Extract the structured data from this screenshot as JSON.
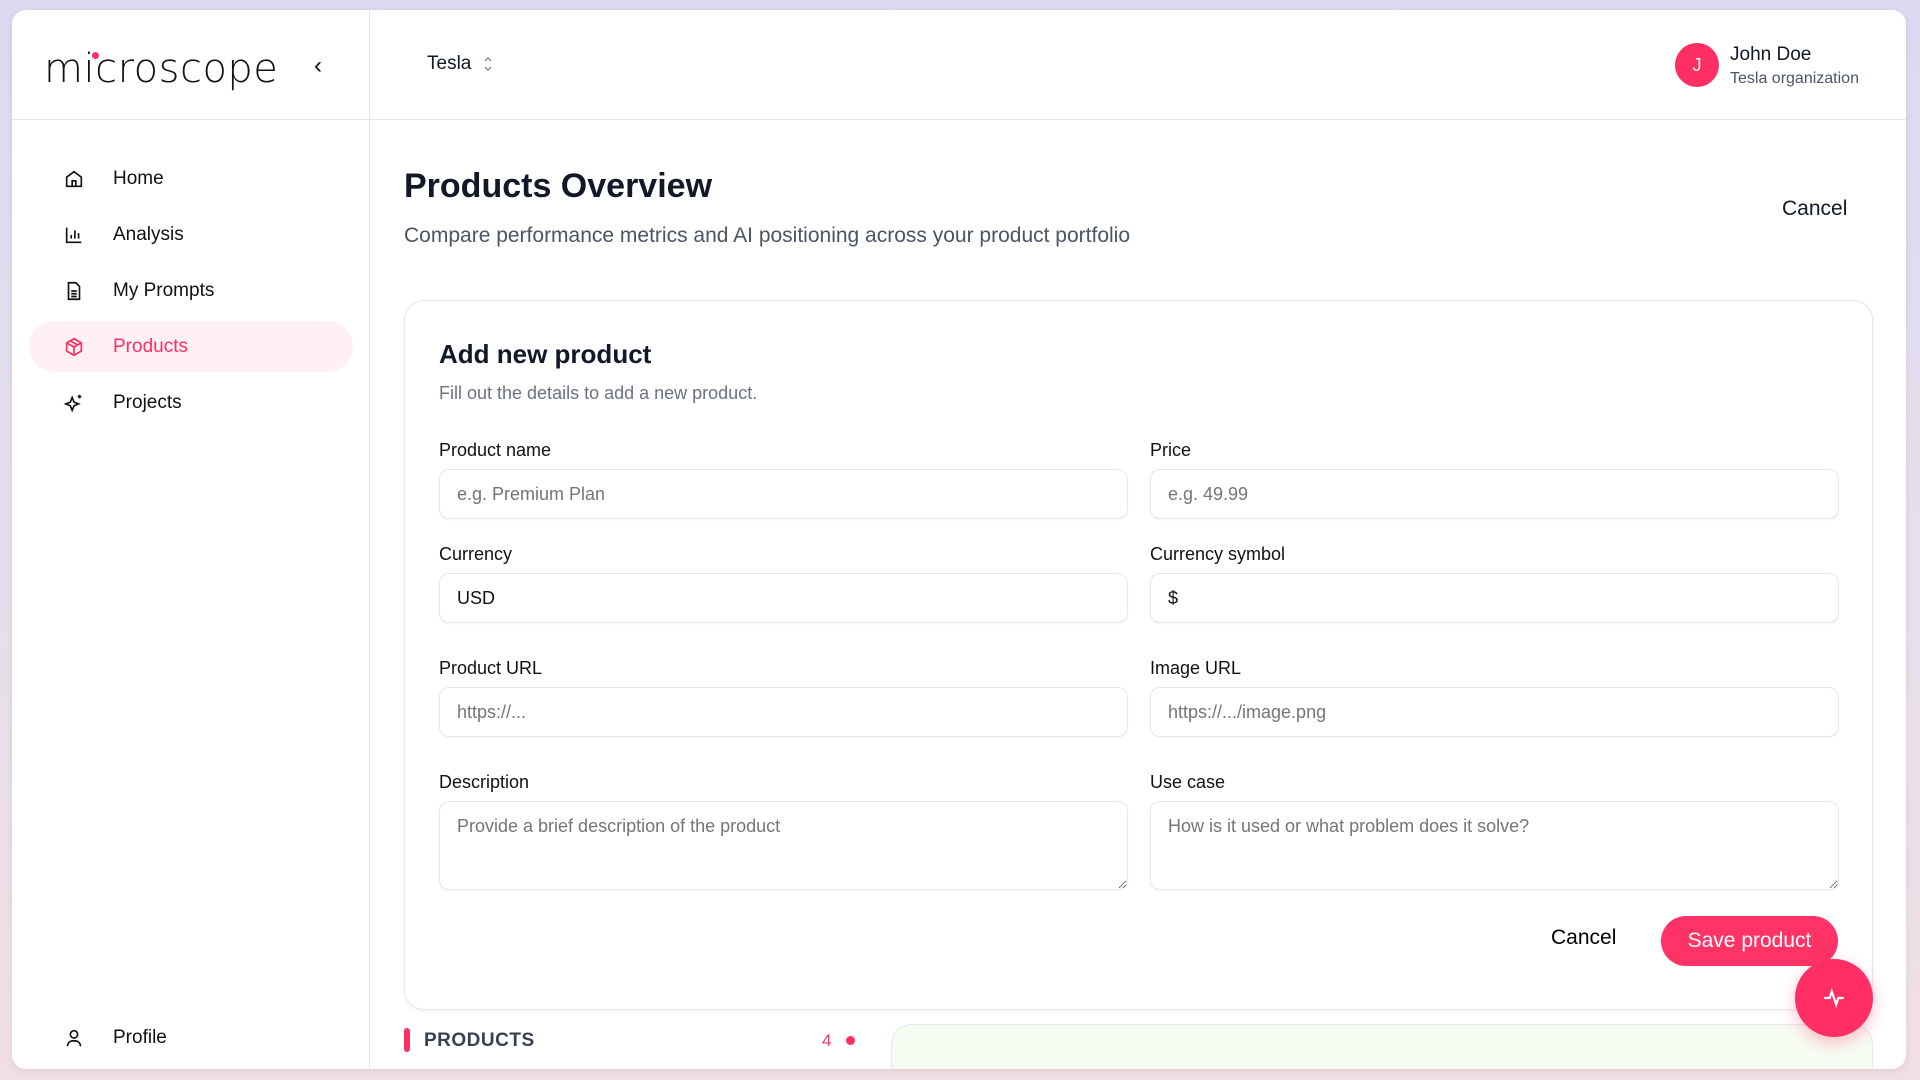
{
  "app": {
    "logo": "microscope",
    "accent": "#ff2e63"
  },
  "sidebar": {
    "items": [
      {
        "label": "Home",
        "icon": "home-icon"
      },
      {
        "label": "Analysis",
        "icon": "bar-chart-icon"
      },
      {
        "label": "My Prompts",
        "icon": "document-icon"
      },
      {
        "label": "Products",
        "icon": "package-icon",
        "active": true
      },
      {
        "label": "Projects",
        "icon": "sparkles-icon"
      }
    ],
    "profile": "Profile"
  },
  "header": {
    "org": "Tesla",
    "user": {
      "initial": "J",
      "name": "John Doe",
      "org": "Tesla organization"
    }
  },
  "page": {
    "title": "Products Overview",
    "subtitle": "Compare performance metrics and AI positioning across your product portfolio",
    "cancel": "Cancel"
  },
  "form": {
    "title": "Add new product",
    "subtitle": "Fill out the details to add a new product.",
    "product_name": {
      "label": "Product name",
      "placeholder": "e.g. Premium Plan"
    },
    "price": {
      "label": "Price",
      "placeholder": "e.g. 49.99"
    },
    "currency": {
      "label": "Currency",
      "value": "USD"
    },
    "currency_symbol": {
      "label": "Currency symbol",
      "value": "$"
    },
    "product_url": {
      "label": "Product URL",
      "placeholder": "https://..."
    },
    "image_url": {
      "label": "Image URL",
      "placeholder": "https://.../image.png"
    },
    "description": {
      "label": "Description",
      "placeholder": "Provide a brief description of the product"
    },
    "use_case": {
      "label": "Use case",
      "placeholder": "How is it used or what problem does it solve?"
    },
    "cancel": "Cancel",
    "save": "Save product"
  },
  "products_section": {
    "label": "PRODUCTS",
    "count": "4"
  }
}
